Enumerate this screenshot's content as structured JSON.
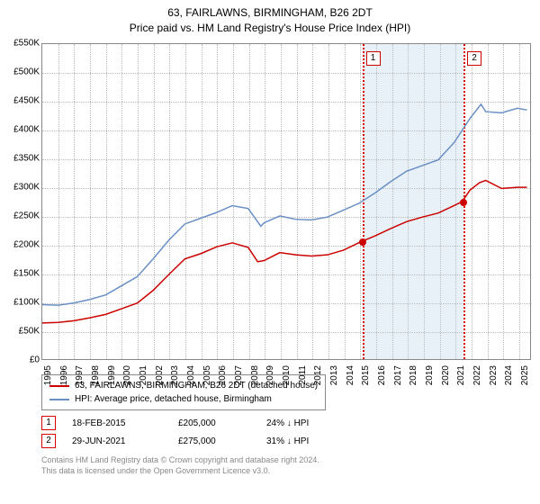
{
  "header": {
    "address": "63, FAIRLAWNS, BIRMINGHAM, B26 2DT",
    "subtitle": "Price paid vs. HM Land Registry's House Price Index (HPI)"
  },
  "chart": {
    "type": "line",
    "background_color": "#ffffff",
    "shade_color": "#e8f0f8",
    "grid_color": "#bbbbbb",
    "border_color": "#888888",
    "text_color": "#000000",
    "label_fontsize": 10,
    "title_fontsize": 12,
    "x_domain": [
      1995,
      2025.8
    ],
    "y_domain": [
      0,
      550000
    ],
    "y_ticks": [
      0,
      50000,
      100000,
      150000,
      200000,
      250000,
      300000,
      350000,
      400000,
      450000,
      500000,
      550000
    ],
    "y_tick_labels": [
      "£0",
      "£50K",
      "£100K",
      "£150K",
      "£200K",
      "£250K",
      "£300K",
      "£350K",
      "£400K",
      "£450K",
      "£500K",
      "£550K"
    ],
    "x_ticks": [
      1995,
      1996,
      1997,
      1998,
      1999,
      2000,
      2001,
      2002,
      2003,
      2004,
      2005,
      2006,
      2007,
      2008,
      2009,
      2010,
      2011,
      2012,
      2013,
      2014,
      2015,
      2016,
      2017,
      2018,
      2019,
      2020,
      2021,
      2022,
      2023,
      2024,
      2025
    ],
    "shaded_range": [
      2015.13,
      2021.5
    ],
    "series": [
      {
        "name": "price_paid",
        "label": "63, FAIRLAWNS, BIRMINGHAM, B26 2DT (detached house)",
        "color": "#cc0000",
        "line_width": 1.5,
        "data": [
          [
            1995,
            63000
          ],
          [
            1996,
            64000
          ],
          [
            1997,
            67000
          ],
          [
            1998,
            72000
          ],
          [
            1999,
            78000
          ],
          [
            2000,
            88000
          ],
          [
            2001,
            98000
          ],
          [
            2002,
            120000
          ],
          [
            2003,
            148000
          ],
          [
            2004,
            175000
          ],
          [
            2005,
            184000
          ],
          [
            2006,
            196000
          ],
          [
            2007,
            203000
          ],
          [
            2008,
            195000
          ],
          [
            2008.6,
            170000
          ],
          [
            2009,
            172000
          ],
          [
            2010,
            186000
          ],
          [
            2011,
            182000
          ],
          [
            2012,
            180000
          ],
          [
            2013,
            182000
          ],
          [
            2014,
            190000
          ],
          [
            2015.13,
            205000
          ],
          [
            2016,
            215000
          ],
          [
            2017,
            228000
          ],
          [
            2018,
            240000
          ],
          [
            2019,
            248000
          ],
          [
            2020,
            255000
          ],
          [
            2021,
            268000
          ],
          [
            2021.5,
            275000
          ],
          [
            2022,
            295000
          ],
          [
            2022.6,
            308000
          ],
          [
            2023,
            312000
          ],
          [
            2024,
            298000
          ],
          [
            2025,
            300000
          ],
          [
            2025.6,
            300000
          ]
        ]
      },
      {
        "name": "hpi",
        "label": "HPI: Average price, detached house, Birmingham",
        "color": "#6a8fc4",
        "line_width": 1.5,
        "data": [
          [
            1995,
            95000
          ],
          [
            1996,
            94000
          ],
          [
            1997,
            98000
          ],
          [
            1998,
            104000
          ],
          [
            1999,
            112000
          ],
          [
            2000,
            128000
          ],
          [
            2001,
            144000
          ],
          [
            2002,
            175000
          ],
          [
            2003,
            208000
          ],
          [
            2004,
            236000
          ],
          [
            2005,
            246000
          ],
          [
            2006,
            256000
          ],
          [
            2007,
            268000
          ],
          [
            2008,
            263000
          ],
          [
            2008.8,
            232000
          ],
          [
            2009,
            238000
          ],
          [
            2010,
            250000
          ],
          [
            2011,
            244000
          ],
          [
            2012,
            243000
          ],
          [
            2013,
            248000
          ],
          [
            2014,
            260000
          ],
          [
            2015,
            272000
          ],
          [
            2016,
            290000
          ],
          [
            2017,
            310000
          ],
          [
            2018,
            328000
          ],
          [
            2019,
            338000
          ],
          [
            2020,
            348000
          ],
          [
            2021,
            378000
          ],
          [
            2022,
            420000
          ],
          [
            2022.7,
            445000
          ],
          [
            2023,
            432000
          ],
          [
            2024,
            430000
          ],
          [
            2025,
            438000
          ],
          [
            2025.6,
            435000
          ]
        ]
      }
    ],
    "sale_markers": [
      {
        "id": "1",
        "x": 2015.13,
        "y": 205000,
        "color": "#cc0000"
      },
      {
        "id": "2",
        "x": 2021.5,
        "y": 275000,
        "color": "#cc0000"
      }
    ]
  },
  "legend": {
    "items": [
      {
        "label": "63, FAIRLAWNS, BIRMINGHAM, B26 2DT (detached house)",
        "color": "#cc0000"
      },
      {
        "label": "HPI: Average price, detached house, Birmingham",
        "color": "#6a8fc4"
      }
    ]
  },
  "sales": [
    {
      "id": "1",
      "date": "18-FEB-2015",
      "price": "£205,000",
      "hpi_diff": "24% ↓ HPI"
    },
    {
      "id": "2",
      "date": "29-JUN-2021",
      "price": "£275,000",
      "hpi_diff": "31% ↓ HPI"
    }
  ],
  "footer": {
    "line1": "Contains HM Land Registry data © Crown copyright and database right 2024.",
    "line2": "This data is licensed under the Open Government Licence v3.0."
  }
}
